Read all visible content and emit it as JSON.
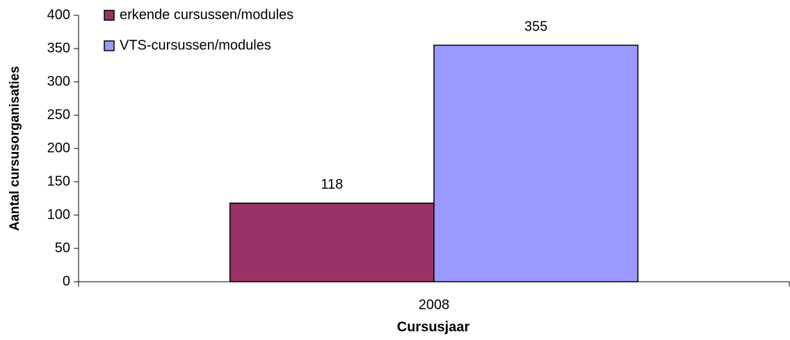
{
  "chart_data": {
    "type": "bar",
    "xlabel": "Cursusjaar",
    "ylabel": "Aantal cursusorganisaties",
    "categories": [
      "2008"
    ],
    "series": [
      {
        "name": "erkende cursussen/modules",
        "color": "#993366",
        "values": [
          118
        ]
      },
      {
        "name": "VTS-cursussen/modules",
        "color": "#9999ff",
        "values": [
          355
        ]
      }
    ],
    "ylim": [
      0,
      400
    ],
    "yticks": [
      0,
      50,
      100,
      150,
      200,
      250,
      300,
      350,
      400
    ],
    "legend": "upper left",
    "grid": false
  }
}
